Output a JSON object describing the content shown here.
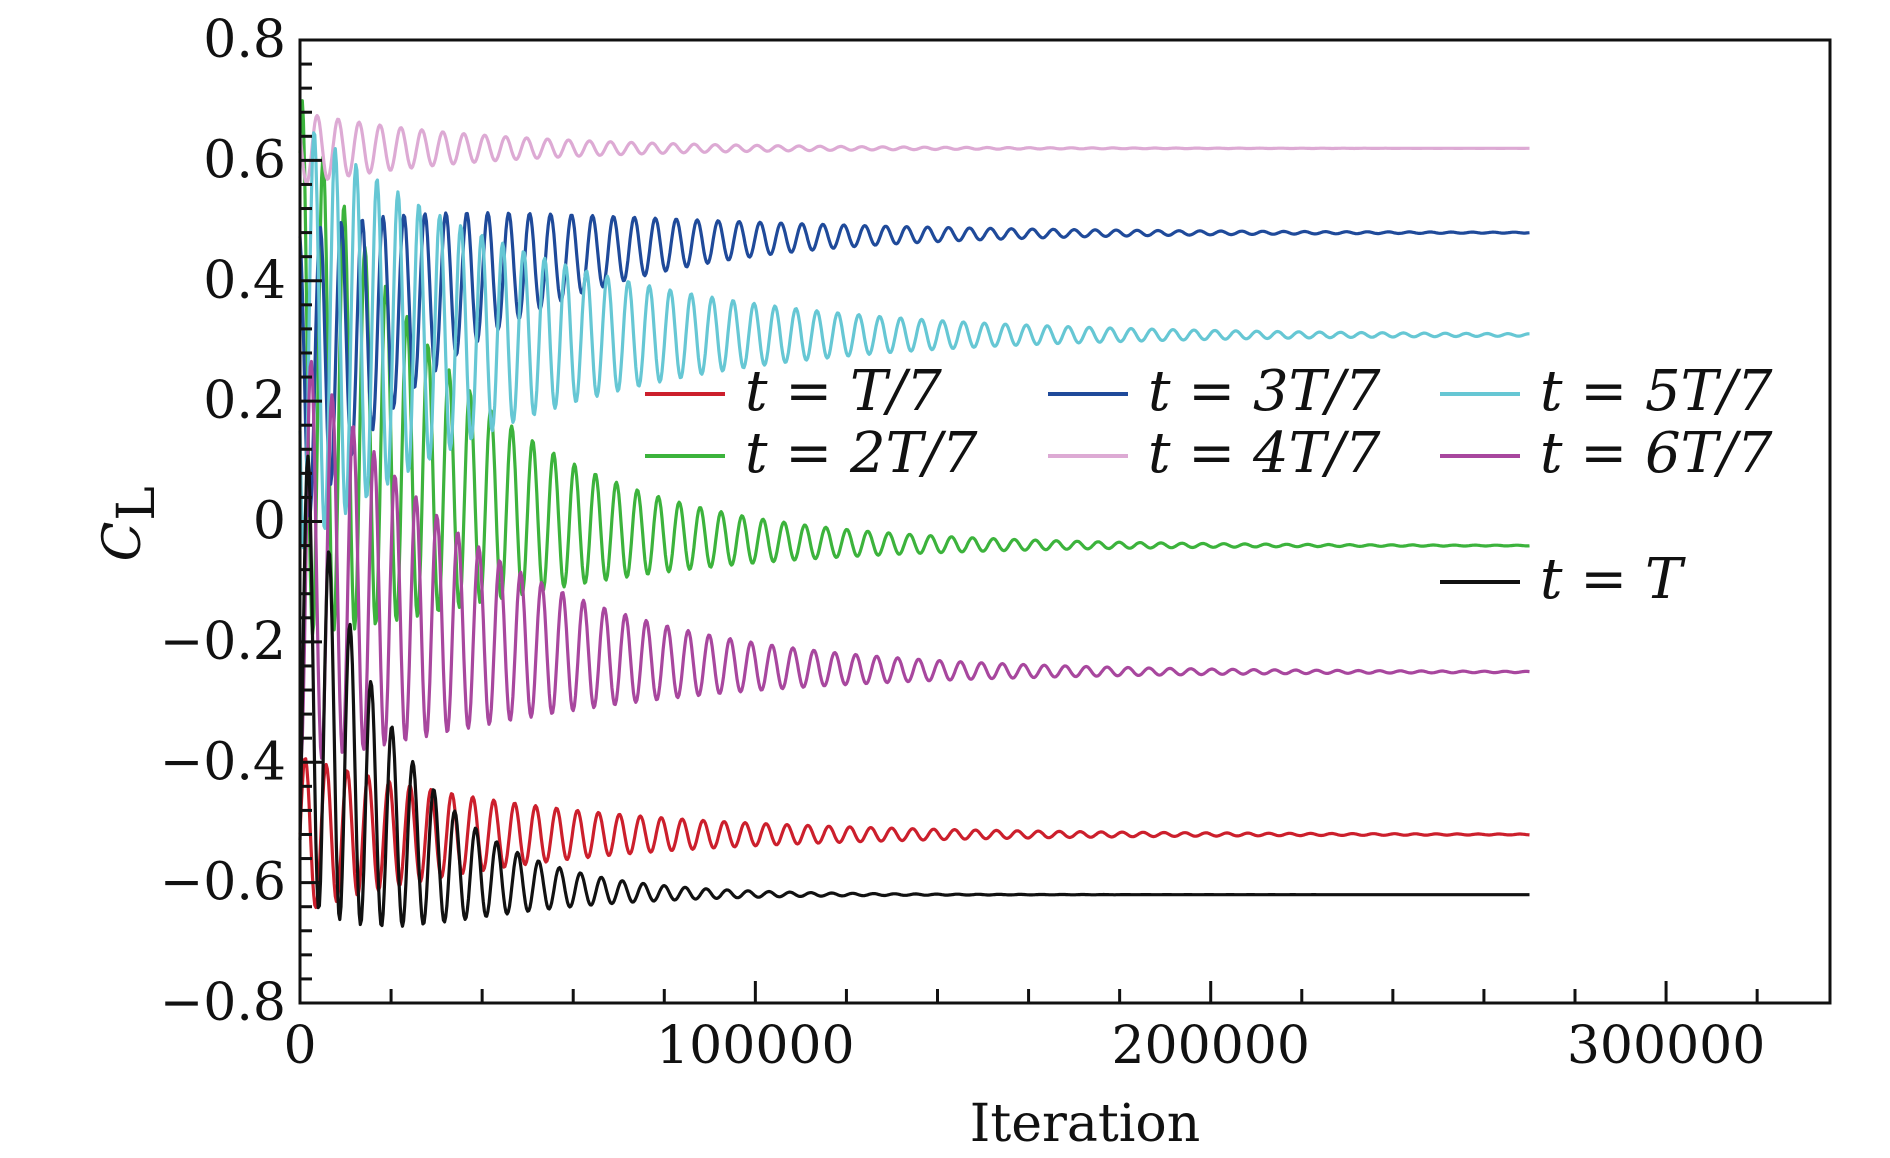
{
  "chart_data": {
    "type": "line",
    "xlabel": "Iteration",
    "ylabel": "C_L",
    "ylabel_main": "C",
    "ylabel_sub": "L",
    "xlim": [
      0,
      336000
    ],
    "ylim": [
      -0.8,
      0.8
    ],
    "x_ticks": [
      0,
      100000,
      200000,
      300000
    ],
    "x_tick_labels": [
      "0",
      "100000",
      "200000",
      "300000"
    ],
    "y_ticks": [
      0.8,
      0.6,
      0.4,
      0.2,
      0,
      -0.2,
      -0.4,
      -0.6,
      -0.8
    ],
    "y_tick_labels": [
      "0.8",
      "0.6",
      "0.4",
      "0.2",
      "0",
      "−0.2",
      "−0.4",
      "−0.6",
      "−0.8"
    ],
    "grid": false,
    "legend_position": "right-center",
    "series": [
      {
        "name": "t = T/7",
        "color": "#cc1f2c",
        "final_value": -0.52,
        "x_end": 270000,
        "peak_amplitude": 0.13,
        "settle": 45000,
        "initial_offset": 0.0
      },
      {
        "name": "t = 2T/7",
        "color": "#3cb33c",
        "final_value": -0.04,
        "x_end": 270000,
        "peak_amplitude": 0.45,
        "settle": 35000,
        "initial_offset": 0.3
      },
      {
        "name": "t = 3T/7",
        "color": "#1f4a9a",
        "final_value": 0.48,
        "x_end": 270000,
        "peak_amplitude": 0.25,
        "settle": 40000,
        "initial_offset": -0.25
      },
      {
        "name": "t = 4T/7",
        "color": "#ddaad4",
        "final_value": 0.62,
        "x_end": 270000,
        "peak_amplitude": 0.06,
        "settle": 35000,
        "initial_offset": 0.0
      },
      {
        "name": "t = 5T/7",
        "color": "#66c7d4",
        "final_value": 0.31,
        "x_end": 270000,
        "peak_amplitude": 0.36,
        "settle": 45000,
        "initial_offset": 0.0
      },
      {
        "name": "t = 6T/7",
        "color": "#a8479e",
        "final_value": -0.25,
        "x_end": 270000,
        "peak_amplitude": 0.35,
        "settle": 40000,
        "initial_offset": 0.2
      },
      {
        "name": "t = T",
        "color": "#111111",
        "final_value": -0.62,
        "x_end": 270000,
        "peak_amplitude": 0.4,
        "settle": 20000,
        "initial_offset": 0.4
      }
    ]
  }
}
